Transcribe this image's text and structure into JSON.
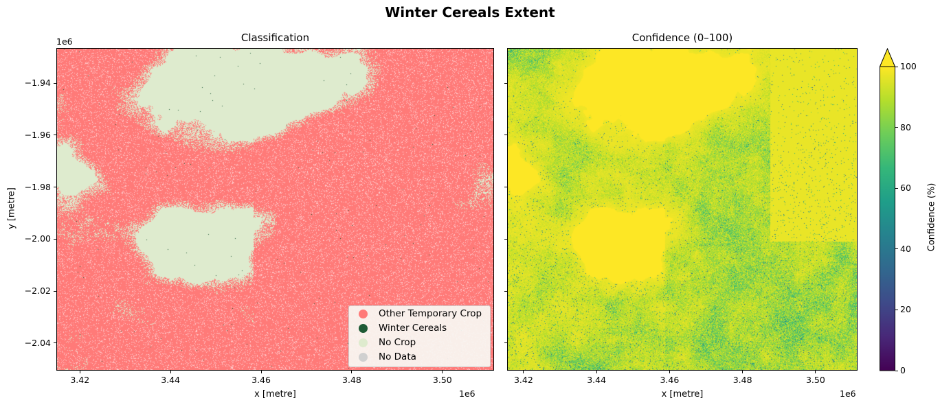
{
  "figure_title": "Winter Cereals Extent",
  "chart_data": [
    {
      "type": "heatmap",
      "title": "Classification",
      "xlabel": "x [metre]",
      "ylabel": "y [metre]",
      "x_offset_label": "1e6",
      "y_offset_label": "1e6",
      "xlim": [
        3.4148,
        3.5114
      ],
      "ylim": [
        -2.0506,
        -1.9265
      ],
      "xticks": [
        3.42,
        3.44,
        3.46,
        3.48,
        3.5
      ],
      "xtick_labels": [
        "3.42",
        "3.44",
        "3.46",
        "3.48",
        "3.50"
      ],
      "yticks": [
        -1.94,
        -1.96,
        -1.98,
        -2.0,
        -2.02,
        -2.04
      ],
      "ytick_labels": [
        "−1.94",
        "−1.96",
        "−1.98",
        "−2.00",
        "−2.02",
        "−2.04"
      ],
      "legend_position": "lower-right",
      "legend": [
        {
          "label": "Other Temporary Crop",
          "color": "#ff7a78"
        },
        {
          "label": "Winter Cereals",
          "color": "#1e5a35"
        },
        {
          "label": "No Crop",
          "color": "#deebce"
        },
        {
          "label": "No Data",
          "color": "#d0d0d0"
        }
      ]
    },
    {
      "type": "heatmap",
      "title": "Confidence (0–100)",
      "xlabel": "x [metre]",
      "x_offset_label": "1e6",
      "xlim": [
        3.4155,
        3.5115
      ],
      "ylim": [
        -2.0506,
        -1.9265
      ],
      "xticks": [
        3.42,
        3.44,
        3.46,
        3.48,
        3.5
      ],
      "xtick_labels": [
        "3.42",
        "3.44",
        "3.46",
        "3.48",
        "3.50"
      ],
      "yticks": [
        -1.94,
        -1.96,
        -1.98,
        -2.0,
        -2.02,
        -2.04
      ],
      "colormap": "viridis",
      "colorbar": {
        "label": "Confidence (%)",
        "range": [
          0,
          100
        ],
        "extend": "max",
        "ticks": [
          0,
          20,
          40,
          60,
          80,
          100
        ],
        "tick_labels": [
          "0",
          "20",
          "40",
          "60",
          "80",
          "100"
        ]
      }
    }
  ]
}
